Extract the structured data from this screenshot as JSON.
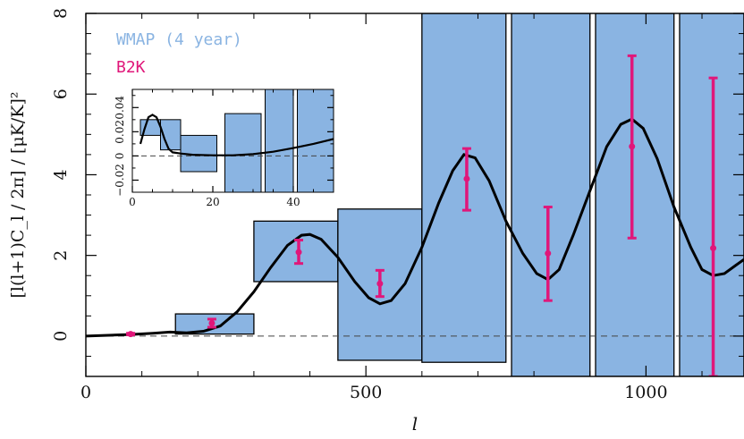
{
  "colors": {
    "wmap_fill": "#8ab4e2",
    "b2k": "#e0177a",
    "curve": "#000000",
    "frame": "#000000"
  },
  "chart_data": [
    {
      "type": "bar",
      "xlabel": "l",
      "ylabel": "[l(l+1)C_l / 2π] / [μK/K]²",
      "xlim": [
        0,
        1175
      ],
      "ylim": [
        -1,
        8
      ],
      "xticks": [
        0,
        500,
        1000
      ],
      "yticks": [
        0,
        2,
        4,
        6,
        8
      ],
      "grid": false,
      "legend": {
        "placement": "top-left",
        "entries": [
          "WMAP (4 year)",
          "B2K"
        ]
      },
      "wmap_boxes": [
        {
          "lmin": 160,
          "lmax": 300,
          "ylo": 0.05,
          "yhi": 0.55
        },
        {
          "lmin": 300,
          "lmax": 450,
          "ylo": 1.35,
          "yhi": 2.85
        },
        {
          "lmin": 450,
          "lmax": 600,
          "ylo": -0.6,
          "yhi": 3.15
        },
        {
          "lmin": 600,
          "lmax": 750,
          "ylo": -0.65,
          "yhi": 8.5
        },
        {
          "lmin": 760,
          "lmax": 900,
          "ylo": -1.0,
          "yhi": 8.5
        },
        {
          "lmin": 910,
          "lmax": 1050,
          "ylo": -1.0,
          "yhi": 8.5
        },
        {
          "lmin": 1060,
          "lmax": 1175,
          "ylo": -1.0,
          "yhi": 8.5
        }
      ],
      "b2k_points": [
        {
          "l": 80,
          "y": 0.05,
          "lo": 0.03,
          "hi": 0.07
        },
        {
          "l": 225,
          "y": 0.32,
          "lo": 0.22,
          "hi": 0.42
        },
        {
          "l": 380,
          "y": 2.08,
          "lo": 1.8,
          "hi": 2.38
        },
        {
          "l": 525,
          "y": 1.3,
          "lo": 0.98,
          "hi": 1.63
        },
        {
          "l": 680,
          "y": 3.9,
          "lo": 3.12,
          "hi": 4.65
        },
        {
          "l": 825,
          "y": 2.05,
          "lo": 0.88,
          "hi": 3.2
        },
        {
          "l": 975,
          "y": 4.7,
          "lo": 2.43,
          "hi": 6.95
        },
        {
          "l": 1120,
          "y": 2.18,
          "lo": -1.0,
          "hi": 6.4
        }
      ],
      "model_curve": [
        [
          0,
          0.0
        ],
        [
          40,
          0.02
        ],
        [
          80,
          0.04
        ],
        [
          120,
          0.07
        ],
        [
          150,
          0.1
        ],
        [
          180,
          0.08
        ],
        [
          210,
          0.12
        ],
        [
          240,
          0.25
        ],
        [
          270,
          0.6
        ],
        [
          300,
          1.1
        ],
        [
          330,
          1.7
        ],
        [
          360,
          2.25
        ],
        [
          385,
          2.5
        ],
        [
          400,
          2.52
        ],
        [
          420,
          2.4
        ],
        [
          450,
          1.95
        ],
        [
          480,
          1.35
        ],
        [
          505,
          0.95
        ],
        [
          525,
          0.8
        ],
        [
          545,
          0.88
        ],
        [
          570,
          1.3
        ],
        [
          600,
          2.2
        ],
        [
          630,
          3.3
        ],
        [
          655,
          4.1
        ],
        [
          675,
          4.5
        ],
        [
          695,
          4.42
        ],
        [
          720,
          3.85
        ],
        [
          750,
          2.85
        ],
        [
          780,
          2.05
        ],
        [
          805,
          1.55
        ],
        [
          825,
          1.4
        ],
        [
          845,
          1.65
        ],
        [
          870,
          2.5
        ],
        [
          900,
          3.6
        ],
        [
          930,
          4.7
        ],
        [
          955,
          5.25
        ],
        [
          975,
          5.38
        ],
        [
          995,
          5.15
        ],
        [
          1020,
          4.4
        ],
        [
          1050,
          3.2
        ],
        [
          1080,
          2.2
        ],
        [
          1100,
          1.65
        ],
        [
          1120,
          1.5
        ],
        [
          1140,
          1.55
        ],
        [
          1160,
          1.75
        ],
        [
          1175,
          1.9
        ]
      ]
    },
    {
      "type": "bar",
      "xlim": [
        0,
        50
      ],
      "ylim": [
        -0.03,
        0.055
      ],
      "xticks": [
        0,
        20,
        40
      ],
      "yticks": [
        -0.02,
        0,
        0.02,
        0.04
      ],
      "ytick_labels": [
        "−0.02",
        "0",
        "0.02",
        "0.04"
      ],
      "grid": false,
      "wmap_boxes": [
        {
          "lmin": 2,
          "lmax": 7,
          "ylo": 0.017,
          "yhi": 0.03
        },
        {
          "lmin": 7,
          "lmax": 12,
          "ylo": 0.005,
          "yhi": 0.03
        },
        {
          "lmin": 12,
          "lmax": 21,
          "ylo": -0.013,
          "yhi": 0.017
        },
        {
          "lmin": 23,
          "lmax": 32,
          "ylo": -0.03,
          "yhi": 0.035
        },
        {
          "lmin": 33,
          "lmax": 40,
          "ylo": -0.03,
          "yhi": 0.055
        },
        {
          "lmin": 41,
          "lmax": 50,
          "ylo": -0.03,
          "yhi": 0.055
        }
      ],
      "model_curve": [
        [
          2,
          0.01
        ],
        [
          3,
          0.022
        ],
        [
          4,
          0.032
        ],
        [
          5,
          0.034
        ],
        [
          6,
          0.032
        ],
        [
          7,
          0.024
        ],
        [
          8,
          0.014
        ],
        [
          9,
          0.006
        ],
        [
          10,
          0.003
        ],
        [
          12,
          0.002
        ],
        [
          15,
          0.001
        ],
        [
          20,
          0.0005
        ],
        [
          25,
          0.0005
        ],
        [
          30,
          0.0015
        ],
        [
          35,
          0.0035
        ],
        [
          40,
          0.0065
        ],
        [
          45,
          0.01
        ],
        [
          50,
          0.014
        ]
      ]
    }
  ]
}
